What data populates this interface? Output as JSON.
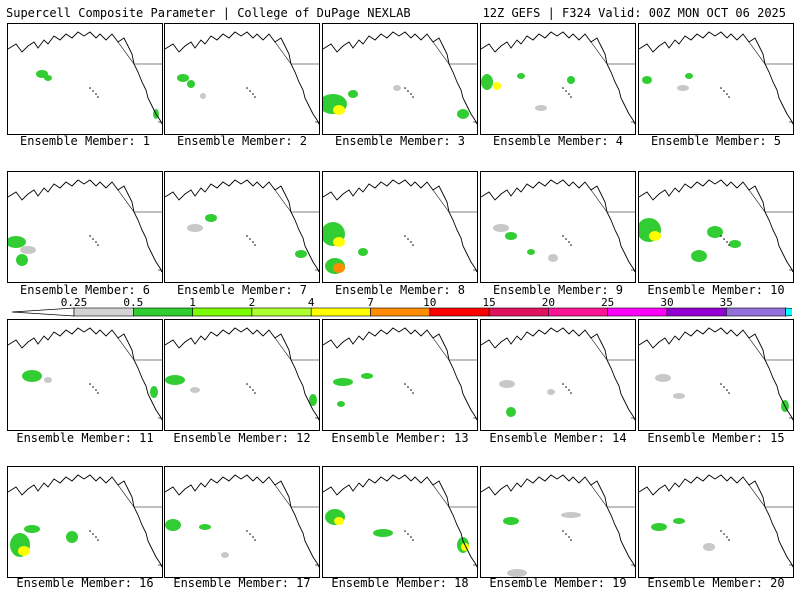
{
  "header": {
    "left": "Supercell Composite Parameter | College of DuPage NEXLAB",
    "right": "12Z GEFS | F324 Valid: 00Z MON OCT 06 2025"
  },
  "panels": [
    {
      "label": "Ensemble Member: 1"
    },
    {
      "label": "Ensemble Member: 2"
    },
    {
      "label": "Ensemble Member: 3"
    },
    {
      "label": "Ensemble Member: 4"
    },
    {
      "label": "Ensemble Member: 5"
    },
    {
      "label": "Ensemble Member: 6"
    },
    {
      "label": "Ensemble Member: 7"
    },
    {
      "label": "Ensemble Member: 8"
    },
    {
      "label": "Ensemble Member: 9"
    },
    {
      "label": "Ensemble Member: 10"
    },
    {
      "label": "Ensemble Member: 11"
    },
    {
      "label": "Ensemble Member: 12"
    },
    {
      "label": "Ensemble Member: 13"
    },
    {
      "label": "Ensemble Member: 14"
    },
    {
      "label": "Ensemble Member: 15"
    },
    {
      "label": "Ensemble Member: 16"
    },
    {
      "label": "Ensemble Member: 17"
    },
    {
      "label": "Ensemble Member: 18"
    },
    {
      "label": "Ensemble Member: 19"
    },
    {
      "label": "Ensemble Member: 20"
    }
  ],
  "colorbar": {
    "ticks": [
      "0.25",
      "0.5",
      "1",
      "2",
      "4",
      "7",
      "10",
      "15",
      "20",
      "25",
      "30",
      "35"
    ],
    "colors": [
      "#d3d3d3",
      "#32cd32",
      "#7cfc00",
      "#adff2f",
      "#ffff00",
      "#ff8c00",
      "#ff0000",
      "#e0115f",
      "#ff1493",
      "#ff00ff",
      "#9400d3",
      "#9370db",
      "#00ffff"
    ]
  }
}
